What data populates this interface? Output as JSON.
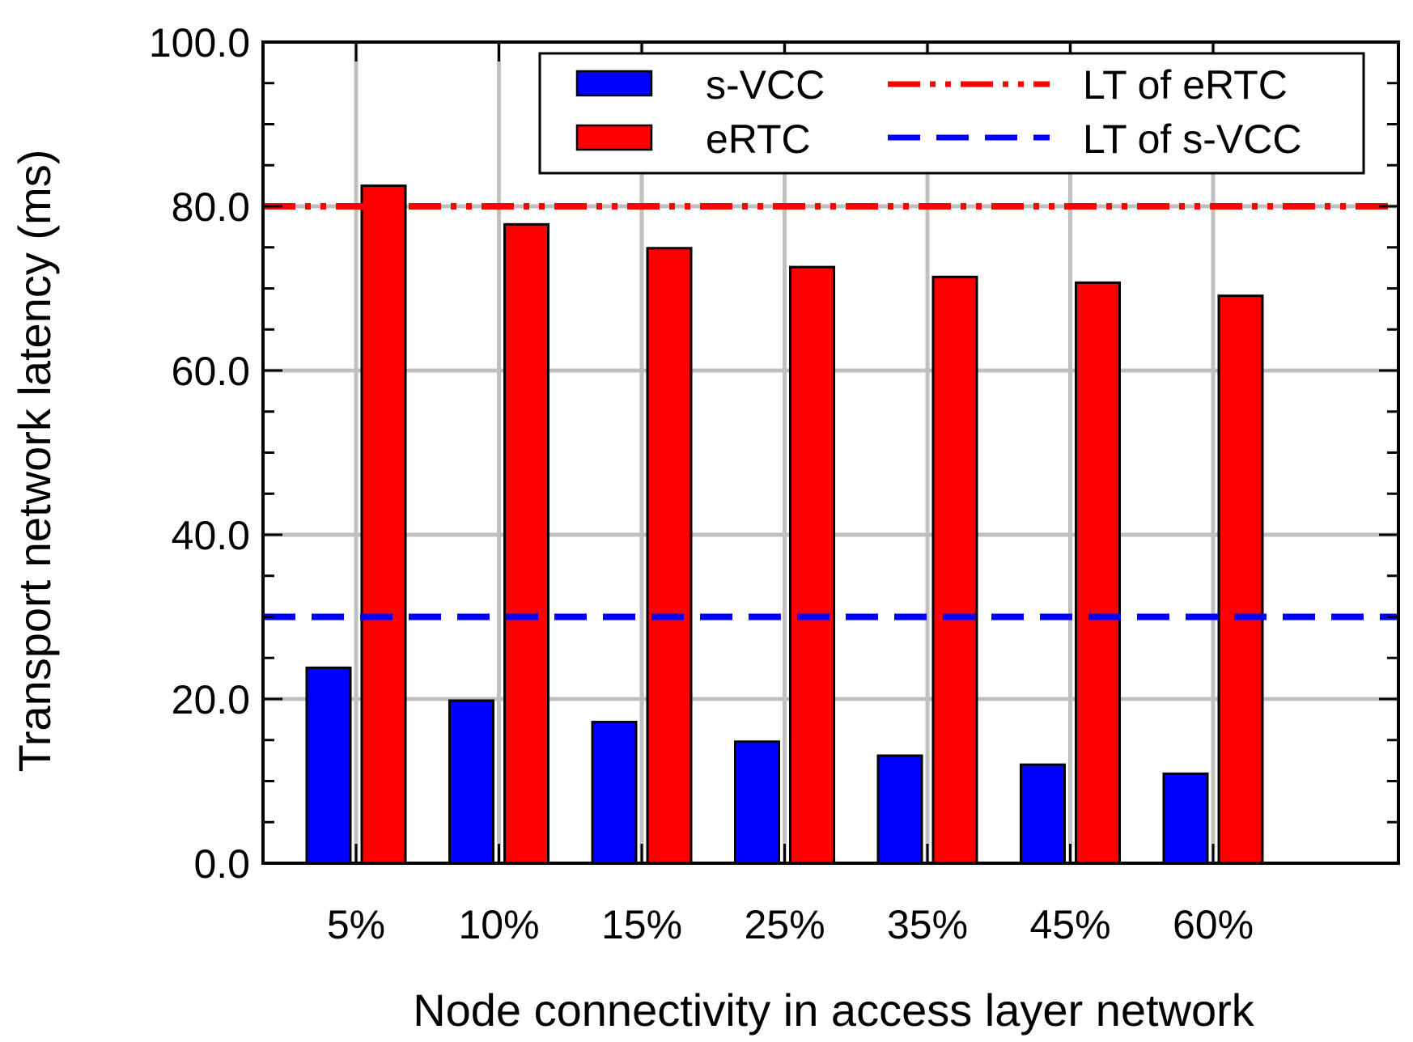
{
  "chart_data": {
    "type": "bar",
    "title": "",
    "xlabel": "Node connectivity in access layer network",
    "ylabel": "Transport network latency (ms)",
    "ylim": [
      0,
      100
    ],
    "yticks": [
      0,
      20,
      40,
      60,
      80,
      100
    ],
    "ytick_labels": [
      "0.0",
      "20.0",
      "40.0",
      "60.0",
      "80.0",
      "100.0"
    ],
    "categories": [
      "5%",
      "10%",
      "15%",
      "25%",
      "35%",
      "45%",
      "60%"
    ],
    "series": [
      {
        "name": "s-VCC",
        "color": "#0000ff",
        "values": [
          23.8,
          19.8,
          17.2,
          14.8,
          13.1,
          12.0,
          10.9
        ]
      },
      {
        "name": "eRTC",
        "color": "#ff0000",
        "values": [
          82.5,
          77.8,
          74.9,
          72.6,
          71.4,
          70.7,
          69.1
        ]
      }
    ],
    "reference_lines": [
      {
        "name": "LT of eRTC",
        "value": 80,
        "color": "#ff0000",
        "style": "dash-dot-dot"
      },
      {
        "name": "LT of s-VCC",
        "value": 30,
        "color": "#0000ff",
        "style": "dashed"
      }
    ],
    "grid": true,
    "legend_position": "top-right"
  }
}
